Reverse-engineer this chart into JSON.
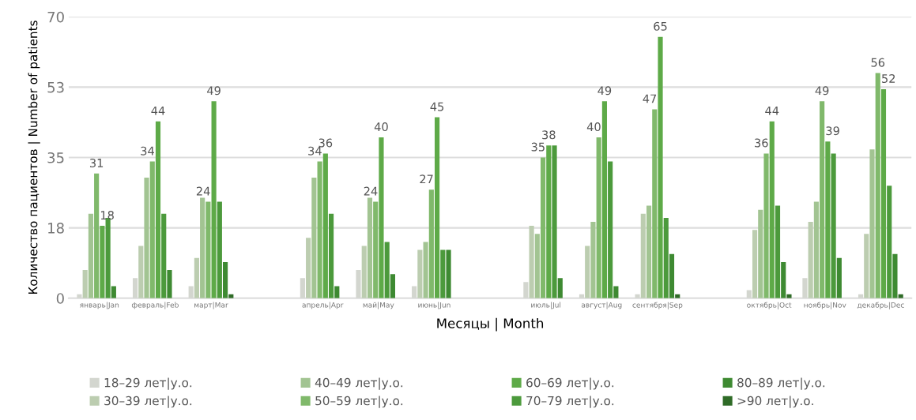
{
  "chart_data": {
    "type": "bar",
    "xlabel": "Месяцы | Month",
    "ylabel": "Количество пациентов | Number of patients",
    "categories": [
      "январь|Jan",
      "февраль|Feb",
      "март|Mar",
      null,
      "апрель|Apr",
      "май|May",
      "июнь|Jun",
      null,
      "июль|Jul",
      "август|Aug",
      "сентября|Sep",
      null,
      "октябрь|Oct",
      "ноябрь|Nov",
      "декабрь|Dec"
    ],
    "ylim": [
      0,
      70
    ],
    "yticks": [
      0,
      {
        "value": 17.5,
        "label": "18"
      },
      35,
      {
        "value": 52.5,
        "label": "53"
      },
      70
    ],
    "grid": "y",
    "legend": "bottom",
    "series": [
      {
        "name": "18–29 лет|у.о.",
        "color": "#d3d6cf",
        "values": [
          1,
          5,
          3,
          null,
          5,
          7,
          3,
          null,
          4,
          1,
          1,
          null,
          2,
          5,
          1
        ]
      },
      {
        "name": "30–39 лет|у.о.",
        "color": "#bccdb0",
        "values": [
          7,
          13,
          10,
          null,
          15,
          13,
          12,
          null,
          18,
          13,
          21,
          null,
          17,
          19,
          16
        ]
      },
      {
        "name": "40–49 лет|у.о.",
        "color": "#a2c492",
        "values": [
          21,
          30,
          25,
          null,
          30,
          25,
          14,
          null,
          16,
          19,
          23,
          null,
          22,
          24,
          37
        ]
      },
      {
        "name": "50–59 лет|у.о.",
        "color": "#80b96b",
        "values": [
          31,
          34,
          24,
          null,
          34,
          24,
          27,
          null,
          35,
          40,
          47,
          null,
          36,
          49,
          56
        ],
        "value_labels": [
          "31",
          "34",
          "24",
          null,
          "34",
          "24",
          "27",
          null,
          "35",
          "40",
          "47",
          null,
          "36",
          "49",
          "56"
        ]
      },
      {
        "name": "60–69 лет|у.о.",
        "color": "#5eaa48",
        "values": [
          18,
          44,
          49,
          null,
          36,
          40,
          45,
          null,
          38,
          49,
          65,
          null,
          44,
          39,
          52
        ],
        "value_labels": [
          "18",
          "44",
          "49",
          null,
          "36",
          "40",
          "45",
          null,
          "38",
          "49",
          "65",
          null,
          "44",
          "39",
          "52"
        ]
      },
      {
        "name": "70–79 лет|у.о.",
        "color": "#4c9a3c",
        "values": [
          20,
          21,
          24,
          null,
          21,
          14,
          12,
          null,
          38,
          34,
          20,
          null,
          23,
          36,
          28
        ]
      },
      {
        "name": "80–89 лет|у.о.",
        "color": "#3e8a32",
        "values": [
          3,
          7,
          9,
          null,
          3,
          6,
          12,
          null,
          5,
          3,
          11,
          null,
          9,
          10,
          11
        ]
      },
      {
        "name": ">90 лет|у.о.",
        "color": "#2f6b27",
        "values": [
          0,
          0,
          1,
          null,
          0,
          0,
          0,
          null,
          0,
          0,
          1,
          null,
          1,
          0,
          1
        ]
      }
    ]
  }
}
